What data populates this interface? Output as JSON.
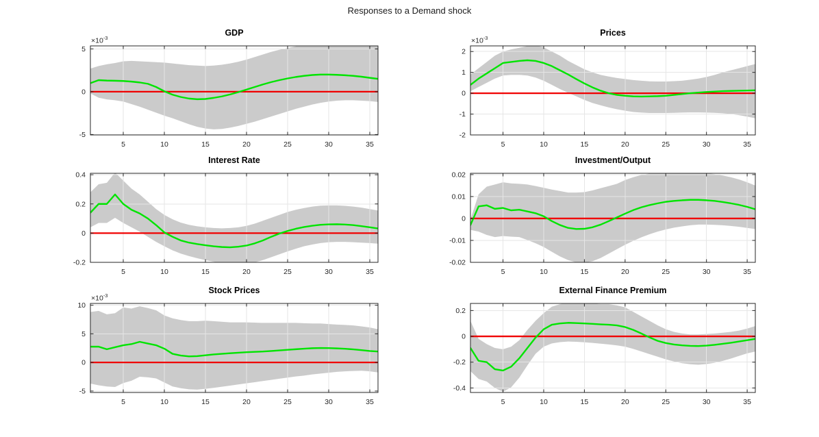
{
  "figure": {
    "title": "Responses to a Demand shock",
    "background": "#ffffff",
    "colors": {
      "median": "#00e400",
      "zero_line": "#f00000",
      "band": "#cbcbcb",
      "grid": "#e6e6e6",
      "axis": "#262626",
      "tick_text": "#262626"
    },
    "x": [
      1,
      2,
      3,
      4,
      5,
      6,
      7,
      8,
      9,
      10,
      11,
      12,
      13,
      14,
      15,
      16,
      17,
      18,
      19,
      20,
      21,
      22,
      23,
      24,
      25,
      26,
      27,
      28,
      29,
      30,
      31,
      32,
      33,
      34,
      35,
      36
    ],
    "x_range": [
      1,
      36
    ],
    "x_tick_values": [
      5,
      10,
      15,
      20,
      25,
      30,
      35
    ],
    "x_tick_labels": [
      "5",
      "10",
      "15",
      "20",
      "25",
      "30",
      "35"
    ],
    "grid": "on",
    "legend": "none"
  },
  "chart_data": [
    {
      "type": "area+line",
      "title": "GDP",
      "exponent_base": "×10",
      "exponent_power": "-3",
      "unit_scale": "1e-3",
      "ylim": [
        -5.05,
        5.35
      ],
      "ytick_values": [
        -5,
        0,
        5
      ],
      "ytick_labels": [
        "-5",
        "0",
        "5"
      ],
      "zero_line": 0,
      "median": [
        1.0,
        1.35,
        1.3,
        1.28,
        1.25,
        1.18,
        1.08,
        0.92,
        0.55,
        0.05,
        -0.35,
        -0.62,
        -0.8,
        -0.88,
        -0.85,
        -0.72,
        -0.55,
        -0.32,
        -0.05,
        0.25,
        0.55,
        0.85,
        1.12,
        1.35,
        1.55,
        1.72,
        1.85,
        1.95,
        2.0,
        2.0,
        1.97,
        1.92,
        1.85,
        1.75,
        1.62,
        1.5
      ],
      "band_upper": [
        2.7,
        3.0,
        3.2,
        3.35,
        3.55,
        3.6,
        3.55,
        3.5,
        3.45,
        3.4,
        3.3,
        3.2,
        3.1,
        3.05,
        3.0,
        3.05,
        3.15,
        3.3,
        3.5,
        3.75,
        4.05,
        4.35,
        4.65,
        4.9,
        5.1,
        5.3,
        5.45,
        5.55,
        5.6,
        5.6,
        5.55,
        5.5,
        5.45,
        5.4,
        5.35,
        5.3
      ],
      "band_lower": [
        -0.2,
        -0.7,
        -0.9,
        -1.0,
        -1.15,
        -1.45,
        -1.75,
        -2.1,
        -2.45,
        -2.8,
        -3.1,
        -3.45,
        -3.8,
        -4.1,
        -4.3,
        -4.4,
        -4.35,
        -4.2,
        -4.0,
        -3.75,
        -3.5,
        -3.2,
        -2.9,
        -2.6,
        -2.3,
        -2.0,
        -1.75,
        -1.5,
        -1.3,
        -1.15,
        -1.05,
        -1.0,
        -1.0,
        -1.05,
        -1.1,
        -1.2
      ]
    },
    {
      "type": "area+line",
      "title": "Prices",
      "exponent_base": "×10",
      "exponent_power": "-3",
      "unit_scale": "1e-3",
      "ylim": [
        -2.0,
        2.27
      ],
      "ytick_values": [
        -2,
        -1,
        0,
        1,
        2
      ],
      "ytick_labels": [
        "-2",
        "-1",
        "0",
        "1",
        "2"
      ],
      "zero_line": 0,
      "median": [
        0.4,
        0.7,
        0.95,
        1.2,
        1.45,
        1.5,
        1.55,
        1.58,
        1.55,
        1.45,
        1.3,
        1.1,
        0.9,
        0.68,
        0.47,
        0.28,
        0.12,
        0.0,
        -0.08,
        -0.12,
        -0.15,
        -0.16,
        -0.15,
        -0.14,
        -0.12,
        -0.08,
        -0.04,
        0.0,
        0.03,
        0.06,
        0.08,
        0.1,
        0.11,
        0.12,
        0.13,
        0.14
      ],
      "band_upper": [
        0.9,
        1.2,
        1.5,
        1.8,
        2.0,
        2.1,
        2.18,
        2.26,
        2.3,
        2.2,
        2.0,
        1.8,
        1.55,
        1.35,
        1.15,
        1.0,
        0.88,
        0.8,
        0.73,
        0.68,
        0.63,
        0.6,
        0.57,
        0.56,
        0.56,
        0.58,
        0.6,
        0.65,
        0.7,
        0.78,
        0.88,
        1.0,
        1.1,
        1.2,
        1.3,
        1.4
      ],
      "band_lower": [
        0.1,
        0.3,
        0.5,
        0.7,
        0.85,
        0.88,
        0.88,
        0.85,
        0.75,
        0.6,
        0.4,
        0.2,
        0.02,
        -0.15,
        -0.32,
        -0.47,
        -0.58,
        -0.68,
        -0.77,
        -0.84,
        -0.9,
        -0.93,
        -0.95,
        -0.95,
        -0.95,
        -0.94,
        -0.93,
        -0.92,
        -0.92,
        -0.93,
        -0.94,
        -0.96,
        -1.0,
        -1.05,
        -1.12,
        -1.2
      ]
    },
    {
      "type": "area+line",
      "title": "Interest Rate",
      "unit_scale": "1",
      "ylim": [
        -0.2,
        0.41
      ],
      "ytick_values": [
        -0.2,
        0,
        0.2,
        0.4
      ],
      "ytick_labels": [
        "-0.2",
        "0",
        "0.2",
        "0.4"
      ],
      "zero_line": 0,
      "median": [
        0.14,
        0.2,
        0.2,
        0.265,
        0.2,
        0.16,
        0.135,
        0.1,
        0.055,
        0.005,
        -0.025,
        -0.05,
        -0.065,
        -0.075,
        -0.083,
        -0.09,
        -0.095,
        -0.097,
        -0.093,
        -0.085,
        -0.07,
        -0.05,
        -0.025,
        -0.003,
        0.015,
        0.03,
        0.042,
        0.051,
        0.057,
        0.06,
        0.061,
        0.059,
        0.055,
        0.048,
        0.04,
        0.032
      ],
      "band_upper": [
        0.28,
        0.335,
        0.345,
        0.415,
        0.36,
        0.305,
        0.265,
        0.215,
        0.165,
        0.125,
        0.095,
        0.072,
        0.057,
        0.047,
        0.04,
        0.035,
        0.033,
        0.035,
        0.04,
        0.05,
        0.065,
        0.085,
        0.105,
        0.125,
        0.145,
        0.16,
        0.172,
        0.182,
        0.188,
        0.19,
        0.19,
        0.187,
        0.182,
        0.175,
        0.165,
        0.155
      ],
      "band_lower": [
        0.04,
        0.07,
        0.07,
        0.105,
        0.07,
        0.04,
        0.01,
        -0.025,
        -0.06,
        -0.09,
        -0.118,
        -0.14,
        -0.157,
        -0.172,
        -0.185,
        -0.196,
        -0.205,
        -0.211,
        -0.213,
        -0.21,
        -0.2,
        -0.185,
        -0.165,
        -0.145,
        -0.125,
        -0.107,
        -0.09,
        -0.078,
        -0.068,
        -0.062,
        -0.06,
        -0.06,
        -0.062,
        -0.065,
        -0.068,
        -0.072
      ]
    },
    {
      "type": "area+line",
      "title": "Investment/Output",
      "unit_scale": "1",
      "ylim": [
        -0.02,
        0.0206
      ],
      "ytick_values": [
        -0.02,
        -0.01,
        0,
        0.01,
        0.02
      ],
      "ytick_labels": [
        "-0.02",
        "-0.01",
        "0",
        "0.01",
        "0.02"
      ],
      "zero_line": 0,
      "median": [
        -0.003,
        0.0055,
        0.006,
        0.0044,
        0.0048,
        0.0037,
        0.004,
        0.0032,
        0.0024,
        0.001,
        -0.0012,
        -0.003,
        -0.0043,
        -0.0048,
        -0.0047,
        -0.004,
        -0.0028,
        -0.0012,
        0.0005,
        0.0022,
        0.0038,
        0.0051,
        0.0061,
        0.0069,
        0.0076,
        0.008,
        0.0083,
        0.0085,
        0.0085,
        0.0083,
        0.008,
        0.0075,
        0.0069,
        0.0062,
        0.0053,
        0.0042
      ],
      "band_upper": [
        -0.0005,
        0.011,
        0.0145,
        0.0155,
        0.0165,
        0.016,
        0.0158,
        0.0155,
        0.0148,
        0.014,
        0.0132,
        0.0125,
        0.0118,
        0.0118,
        0.012,
        0.0128,
        0.0138,
        0.0148,
        0.0158,
        0.0175,
        0.0188,
        0.0198,
        0.0205,
        0.021,
        0.0213,
        0.0215,
        0.0215,
        0.0214,
        0.0211,
        0.0207,
        0.0202,
        0.0196,
        0.0188,
        0.0178,
        0.0165,
        0.015
      ],
      "band_lower": [
        -0.0052,
        -0.006,
        -0.0075,
        -0.0085,
        -0.008,
        -0.0083,
        -0.0085,
        -0.0098,
        -0.0113,
        -0.013,
        -0.0152,
        -0.0173,
        -0.019,
        -0.02,
        -0.0202,
        -0.0195,
        -0.018,
        -0.016,
        -0.014,
        -0.012,
        -0.0102,
        -0.0086,
        -0.0072,
        -0.006,
        -0.005,
        -0.0042,
        -0.0036,
        -0.0031,
        -0.0028,
        -0.0028,
        -0.0029,
        -0.0031,
        -0.0034,
        -0.0038,
        -0.0043,
        -0.0048
      ]
    },
    {
      "type": "area+line",
      "title": "Stock Prices",
      "exponent_base": "×10",
      "exponent_power": "-3",
      "unit_scale": "1e-3",
      "ylim": [
        -5.25,
        10.3
      ],
      "ytick_values": [
        -5,
        0,
        5,
        10
      ],
      "ytick_labels": [
        "-5",
        "0",
        "5",
        "10"
      ],
      "zero_line": 0,
      "median": [
        2.75,
        2.75,
        2.3,
        2.65,
        3.0,
        3.2,
        3.6,
        3.3,
        3.0,
        2.4,
        1.5,
        1.2,
        1.05,
        1.1,
        1.25,
        1.4,
        1.5,
        1.6,
        1.7,
        1.78,
        1.85,
        1.9,
        2.0,
        2.1,
        2.2,
        2.3,
        2.4,
        2.48,
        2.52,
        2.5,
        2.45,
        2.38,
        2.28,
        2.15,
        2.0,
        1.9
      ],
      "band_upper": [
        8.8,
        9.0,
        8.4,
        8.6,
        9.6,
        9.4,
        9.8,
        9.5,
        9.1,
        8.2,
        7.7,
        7.4,
        7.2,
        7.2,
        7.3,
        7.2,
        7.1,
        7.0,
        7.0,
        7.0,
        6.95,
        6.9,
        6.9,
        6.9,
        6.9,
        6.9,
        6.85,
        6.8,
        6.8,
        6.7,
        6.6,
        6.55,
        6.45,
        6.3,
        6.1,
        5.8
      ],
      "band_lower": [
        -3.7,
        -4.0,
        -4.2,
        -4.3,
        -3.6,
        -3.2,
        -2.5,
        -2.6,
        -2.8,
        -3.5,
        -4.2,
        -4.5,
        -4.7,
        -4.75,
        -4.6,
        -4.45,
        -4.25,
        -4.05,
        -3.85,
        -3.65,
        -3.45,
        -3.25,
        -3.05,
        -2.85,
        -2.65,
        -2.45,
        -2.3,
        -2.1,
        -1.95,
        -1.8,
        -1.65,
        -1.55,
        -1.5,
        -1.45,
        -1.55,
        -1.75
      ]
    },
    {
      "type": "area+line",
      "title": "External Finance Premium",
      "unit_scale": "1",
      "ylim": [
        -0.435,
        0.255
      ],
      "ytick_values": [
        -0.4,
        -0.2,
        0,
        0.2
      ],
      "ytick_labels": [
        "-0.4",
        "-0.2",
        "0",
        "0.2"
      ],
      "zero_line": 0,
      "median": [
        -0.09,
        -0.19,
        -0.2,
        -0.255,
        -0.265,
        -0.235,
        -0.17,
        -0.09,
        -0.01,
        0.055,
        0.09,
        0.1,
        0.105,
        0.103,
        0.1,
        0.097,
        0.093,
        0.09,
        0.085,
        0.072,
        0.05,
        0.022,
        -0.008,
        -0.035,
        -0.052,
        -0.063,
        -0.07,
        -0.074,
        -0.075,
        -0.072,
        -0.066,
        -0.058,
        -0.05,
        -0.04,
        -0.03,
        -0.02
      ],
      "band_upper": [
        0.12,
        -0.02,
        -0.06,
        -0.09,
        -0.1,
        -0.08,
        -0.03,
        0.05,
        0.12,
        0.18,
        0.23,
        0.25,
        0.26,
        0.26,
        0.26,
        0.255,
        0.25,
        0.25,
        0.24,
        0.225,
        0.19,
        0.155,
        0.12,
        0.085,
        0.055,
        0.035,
        0.022,
        0.015,
        0.015,
        0.018,
        0.022,
        0.028,
        0.035,
        0.045,
        0.06,
        0.08
      ],
      "band_lower": [
        -0.27,
        -0.33,
        -0.35,
        -0.4,
        -0.43,
        -0.395,
        -0.32,
        -0.225,
        -0.135,
        -0.08,
        -0.055,
        -0.045,
        -0.04,
        -0.042,
        -0.046,
        -0.051,
        -0.057,
        -0.063,
        -0.07,
        -0.08,
        -0.097,
        -0.117,
        -0.138,
        -0.158,
        -0.178,
        -0.195,
        -0.208,
        -0.216,
        -0.22,
        -0.215,
        -0.205,
        -0.19,
        -0.172,
        -0.152,
        -0.132,
        -0.118
      ]
    }
  ]
}
